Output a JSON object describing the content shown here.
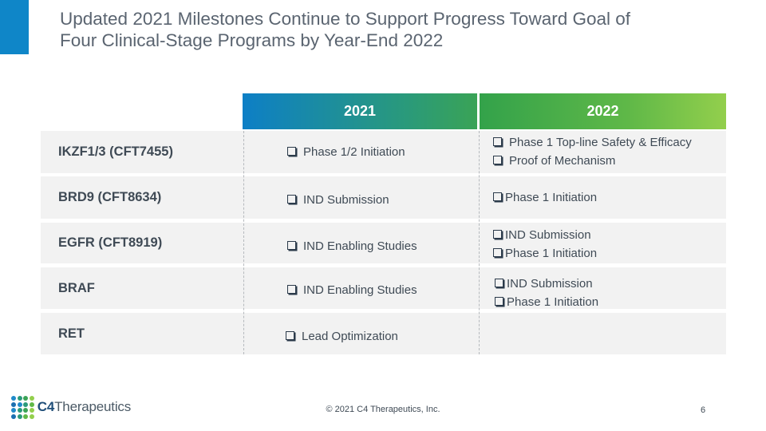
{
  "title": {
    "line1": "Updated 2021 Milestones Continue to Support Progress Toward Goal of",
    "line2": "Four Clinical-Stage Programs by Year-End 2022"
  },
  "headers": {
    "y2021": "2021",
    "y2022": "2022"
  },
  "rows": [
    {
      "name": "IKZF1/3 (CFT7455)",
      "m2021": [
        "Phase 1/2 Initiation"
      ],
      "m2022": [
        "Phase 1 Top-line Safety & Efficacy",
        "Proof of Mechanism"
      ]
    },
    {
      "name": "BRD9 (CFT8634)",
      "m2021": [
        "IND Submission"
      ],
      "m2022": [
        "Phase 1 Initiation"
      ]
    },
    {
      "name": "EGFR (CFT8919)",
      "m2021": [
        "IND Enabling Studies"
      ],
      "m2022": [
        "IND Submission",
        "Phase 1 Initiation"
      ]
    },
    {
      "name": "BRAF",
      "m2021": [
        "IND Enabling Studies"
      ],
      "m2022": [
        "IND Submission",
        "Phase 1 Initiation"
      ]
    },
    {
      "name": "RET",
      "m2021": [
        "Lead Optimization"
      ],
      "m2022": []
    }
  ],
  "logo": {
    "brand_bold": "C4",
    "brand_rest": "Therapeutics"
  },
  "footer": {
    "copyright": "© 2021 C4 Therapeutics, Inc.",
    "page_number": "6"
  },
  "colors": {
    "accent_blue": "#0f86c8",
    "header_2021_start": "#0d7fc6",
    "header_2022_end": "#93cf4c",
    "row_bg": "#f2f2f2"
  },
  "icons": {
    "checkbox": "checkbox-icon"
  }
}
